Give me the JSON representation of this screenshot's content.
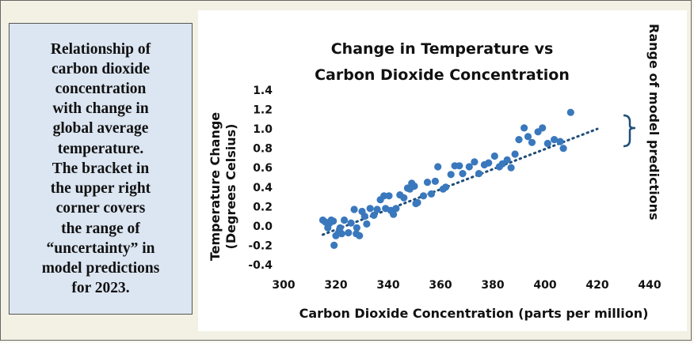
{
  "caption": {
    "text": "Relationship of\ncarbon dioxide\nconcentration\nwith change in\nglobal average\ntemperature.\nThe bracket in\nthe upper right\ncorner covers\nthe range of\n“uncertainty” in\nmodel predictions\nfor 2023."
  },
  "bracket_label": "Range of model predictions",
  "colors": {
    "points": "#3a78bd",
    "trendline": "#1f4e79",
    "bracket": "#1f4e79",
    "caption_bg": "#dce6f2",
    "panel_bg": "#f2f1e4"
  },
  "chart_data": {
    "type": "scatter",
    "title": "Change in Temperature vs\nCarbon Dioxide Concentration",
    "xlabel": "Carbon Dioxide Concentration (parts per million)",
    "ylabel": "Temperature Change\n(Degrees Celsius)",
    "xlim": [
      300,
      440
    ],
    "ylim": [
      -0.4,
      1.4
    ],
    "xticks": [
      "300",
      "320",
      "340",
      "360",
      "380",
      "400",
      "420",
      "440"
    ],
    "yticks": [
      "-0.4",
      "-0.2",
      "0.0",
      "0.2",
      "0.4",
      "0.6",
      "0.8",
      "1.0",
      "1.2",
      "1.4"
    ],
    "grid": false,
    "legend": "none",
    "series": [
      {
        "points": [
          [
            315,
            0.06
          ],
          [
            316,
            0.04
          ],
          [
            316.9,
            -0.02
          ],
          [
            317.6,
            0.03
          ],
          [
            318.2,
            0.06
          ],
          [
            319,
            0.05
          ],
          [
            319.3,
            -0.2
          ],
          [
            320,
            -0.1
          ],
          [
            321,
            -0.07
          ],
          [
            321.6,
            -0.02
          ],
          [
            322.2,
            -0.08
          ],
          [
            323.2,
            0.06
          ],
          [
            324.8,
            -0.07
          ],
          [
            325.8,
            0.03
          ],
          [
            327,
            0.17
          ],
          [
            327.8,
            -0.08
          ],
          [
            328,
            -0.02
          ],
          [
            329,
            -0.1
          ],
          [
            330,
            0.15
          ],
          [
            331,
            0.1
          ],
          [
            331.8,
            0.02
          ],
          [
            333.1,
            0.18
          ],
          [
            334.5,
            0.11
          ],
          [
            335.8,
            0.17
          ],
          [
            337,
            0.27
          ],
          [
            338.4,
            0.31
          ],
          [
            339,
            0.18
          ],
          [
            340.3,
            0.31
          ],
          [
            341,
            0.16
          ],
          [
            342,
            0.12
          ],
          [
            343,
            0.18
          ],
          [
            344.5,
            0.32
          ],
          [
            346,
            0.29
          ],
          [
            347.4,
            0.39
          ],
          [
            348.3,
            0.38
          ],
          [
            349,
            0.44
          ],
          [
            350,
            0.41
          ],
          [
            350.6,
            0.23
          ],
          [
            351.2,
            0.24
          ],
          [
            353.5,
            0.31
          ],
          [
            355,
            0.45
          ],
          [
            356.5,
            0.33
          ],
          [
            358,
            0.46
          ],
          [
            359,
            0.61
          ],
          [
            361,
            0.38
          ],
          [
            362,
            0.4
          ],
          [
            364,
            0.53
          ],
          [
            365.5,
            0.62
          ],
          [
            367.2,
            0.62
          ],
          [
            368.5,
            0.54
          ],
          [
            371,
            0.61
          ],
          [
            373,
            0.66
          ],
          [
            374.7,
            0.54
          ],
          [
            376.8,
            0.63
          ],
          [
            378.4,
            0.65
          ],
          [
            380.7,
            0.72
          ],
          [
            382.5,
            0.61
          ],
          [
            383.7,
            0.64
          ],
          [
            385.5,
            0.68
          ],
          [
            387,
            0.6
          ],
          [
            388.5,
            0.74
          ],
          [
            390,
            0.89
          ],
          [
            392,
            1.01
          ],
          [
            393.5,
            0.92
          ],
          [
            395,
            0.86
          ],
          [
            397.3,
            0.97
          ],
          [
            399,
            1.01
          ],
          [
            401,
            0.85
          ],
          [
            403.5,
            0.89
          ],
          [
            405.8,
            0.87
          ],
          [
            407,
            0.8
          ],
          [
            409.8,
            1.17
          ]
        ]
      }
    ],
    "trendline": {
      "x": [
        315,
        420
      ],
      "y": [
        -0.09,
        1.0
      ]
    }
  }
}
